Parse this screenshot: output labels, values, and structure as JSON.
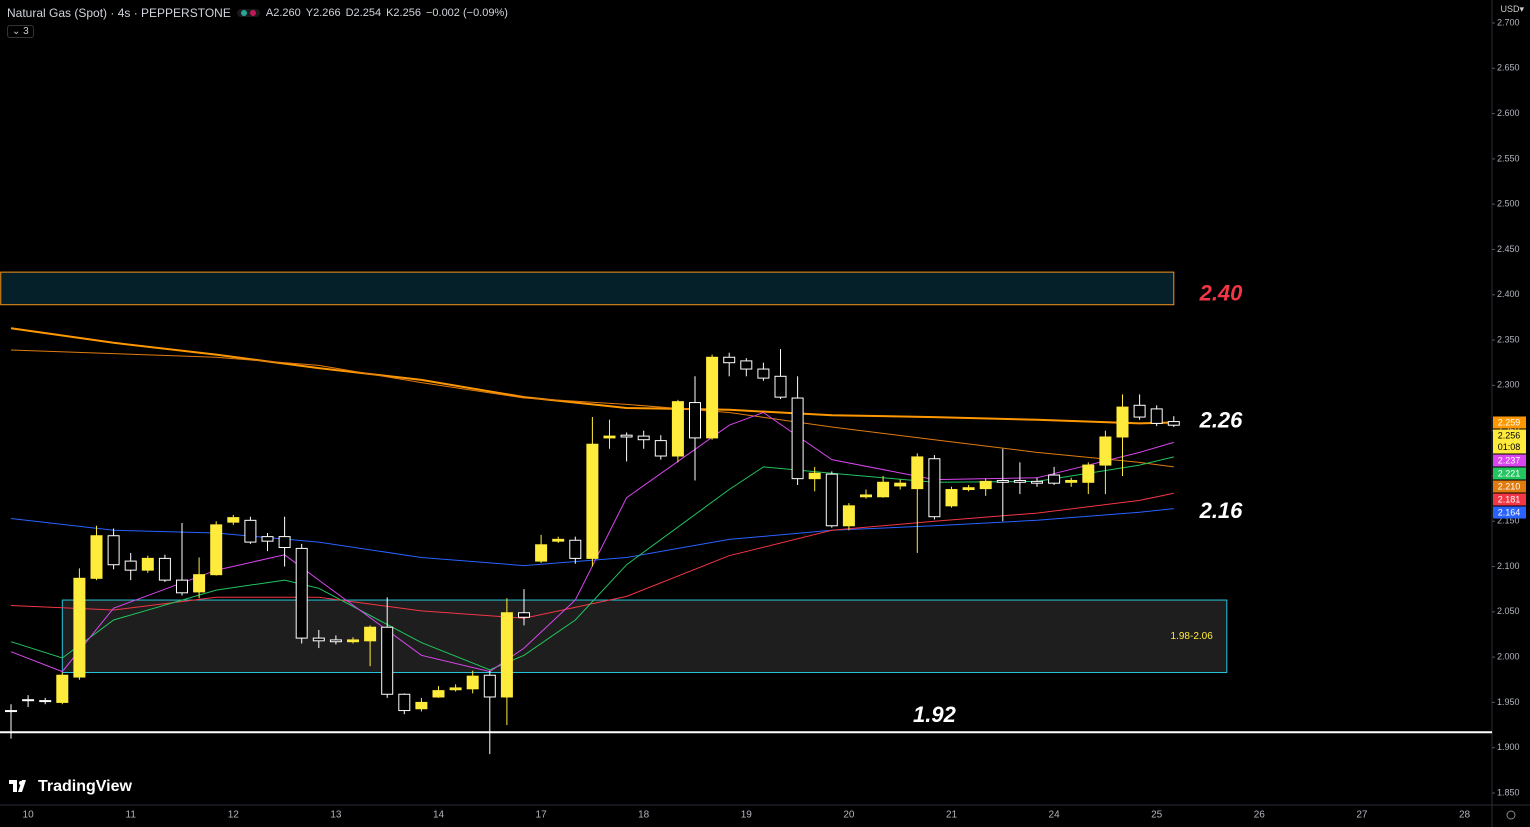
{
  "header": {
    "symbol": "Natural Gas (Spot) · 4s · PEPPERSTONE",
    "ohlc": [
      "A2.260",
      "Y2.266",
      "D2.254",
      "K2.256"
    ],
    "change": "−0.002 (−0.09%)",
    "indicators_count": "3",
    "currency": "USD",
    "brand": "TradingView"
  },
  "chart_data": {
    "type": "candlestick",
    "categories": [
      null,
      "10",
      null,
      null,
      null,
      null,
      null,
      "11",
      null,
      null,
      null,
      null,
      null,
      "12",
      null,
      null,
      null,
      null,
      null,
      "13",
      null,
      null,
      null,
      null,
      null,
      "14",
      null,
      null,
      null,
      null,
      null,
      "17",
      null,
      null,
      null,
      null,
      null,
      "18",
      null,
      null,
      null,
      null,
      null,
      "19",
      null,
      null,
      null,
      null,
      null,
      "20",
      null,
      null,
      null,
      null,
      null,
      "21",
      null,
      null,
      null,
      null,
      null,
      "24",
      null,
      null,
      null,
      null,
      null,
      "25",
      null,
      null,
      null,
      null,
      null,
      "26",
      null,
      null,
      null,
      null,
      null,
      "27",
      null,
      null,
      null,
      null,
      null,
      "28"
    ],
    "open": [
      1.941,
      1.953,
      1.952,
      1.95,
      1.978,
      2.087,
      2.134,
      2.106,
      2.096,
      2.109,
      2.085,
      2.072,
      2.091,
      2.149,
      2.151,
      2.133,
      2.133,
      2.12,
      2.021,
      2.019,
      2.017,
      2.018,
      2.033,
      1.959,
      1.943,
      1.956,
      1.964,
      1.965,
      1.98,
      1.956,
      2.049,
      2.106,
      2.128,
      2.129,
      2.109,
      2.242,
      2.245,
      2.244,
      2.239,
      2.222,
      2.281,
      2.242,
      2.331,
      2.327,
      2.318,
      2.31,
      2.286,
      2.197,
      2.202,
      2.145,
      2.177,
      2.177,
      2.189,
      2.186,
      2.219,
      2.167,
      2.185,
      2.186,
      2.195,
      2.195,
      2.194,
      2.201,
      2.193,
      2.193,
      2.212,
      2.243,
      2.278,
      2.274,
      2.26,
      null,
      null,
      null,
      null,
      null,
      null,
      null,
      null,
      null,
      null,
      null,
      null,
      null,
      null,
      null,
      null,
      null
    ],
    "high": [
      1.948,
      1.958,
      1.955,
      1.983,
      2.098,
      2.145,
      2.142,
      2.115,
      2.112,
      2.113,
      2.148,
      2.11,
      2.15,
      2.157,
      2.155,
      2.137,
      2.155,
      2.125,
      2.03,
      2.024,
      2.022,
      2.035,
      2.066,
      1.96,
      1.955,
      1.968,
      1.97,
      1.985,
      1.985,
      2.065,
      2.075,
      2.135,
      2.133,
      2.133,
      2.265,
      2.262,
      2.248,
      2.25,
      2.245,
      2.284,
      2.31,
      2.334,
      2.336,
      2.33,
      2.325,
      2.34,
      2.31,
      2.21,
      2.205,
      2.17,
      2.185,
      2.2,
      2.196,
      2.225,
      2.223,
      2.188,
      2.19,
      2.197,
      2.23,
      2.215,
      2.198,
      2.21,
      2.198,
      2.215,
      2.25,
      2.29,
      2.29,
      2.278,
      2.266,
      null,
      null,
      null,
      null,
      null,
      null,
      null,
      null,
      null,
      null,
      null,
      null,
      null,
      null,
      null,
      null,
      null
    ],
    "low": [
      1.91,
      1.945,
      1.948,
      1.948,
      1.975,
      2.085,
      2.097,
      2.085,
      2.093,
      2.083,
      2.068,
      2.065,
      2.09,
      2.146,
      2.125,
      2.117,
      2.1,
      2.015,
      2.01,
      2.014,
      2.015,
      1.99,
      1.955,
      1.937,
      1.94,
      1.955,
      1.962,
      1.96,
      1.893,
      1.925,
      2.035,
      2.104,
      2.126,
      2.103,
      2.1,
      2.23,
      2.216,
      2.23,
      2.218,
      2.215,
      2.195,
      2.24,
      2.31,
      2.31,
      2.305,
      2.285,
      2.19,
      2.183,
      2.143,
      2.14,
      2.175,
      2.176,
      2.185,
      2.115,
      2.152,
      2.165,
      2.183,
      2.178,
      2.15,
      2.18,
      2.188,
      2.19,
      2.188,
      2.18,
      2.18,
      2.2,
      2.262,
      2.255,
      2.254,
      null,
      null,
      null,
      null,
      null,
      null,
      null,
      null,
      null,
      null,
      null,
      null,
      null,
      null,
      null,
      null,
      null
    ],
    "close": [
      1.94,
      1.952,
      1.951,
      1.98,
      2.087,
      2.134,
      2.102,
      2.096,
      2.109,
      2.085,
      2.071,
      2.091,
      2.146,
      2.154,
      2.127,
      2.128,
      2.121,
      2.021,
      2.018,
      2.017,
      2.019,
      2.033,
      1.959,
      1.941,
      1.95,
      1.963,
      1.966,
      1.979,
      1.956,
      2.049,
      2.044,
      2.124,
      2.13,
      2.109,
      2.235,
      2.244,
      2.243,
      2.24,
      2.222,
      2.282,
      2.242,
      2.331,
      2.325,
      2.318,
      2.308,
      2.287,
      2.197,
      2.203,
      2.145,
      2.167,
      2.179,
      2.193,
      2.192,
      2.221,
      2.155,
      2.185,
      2.187,
      2.194,
      2.193,
      2.193,
      2.192,
      2.192,
      2.195,
      2.212,
      2.243,
      2.276,
      2.265,
      2.258,
      2.256,
      null,
      null,
      null,
      null,
      null,
      null,
      null,
      null,
      null,
      null,
      null,
      null,
      null,
      null,
      null,
      null,
      null
    ],
    "up_color": "#ffeb3b",
    "down_color": "#ffffff",
    "price_tag": "2.256",
    "countdown": "01:08",
    "series": [
      {
        "color": "#ff9800",
        "width": 2,
        "x": [
          0,
          6,
          12,
          18,
          24,
          30,
          36,
          42,
          48,
          54,
          60,
          66,
          68
        ],
        "values": [
          2.363,
          2.347,
          2.334,
          2.319,
          2.306,
          2.287,
          2.275,
          2.273,
          2.267,
          2.265,
          2.262,
          2.258,
          2.259
        ],
        "tag_label": "2.259"
      },
      {
        "color": "#e07b10",
        "width": 1,
        "x": [
          0,
          6,
          12,
          18,
          24,
          30,
          36,
          42,
          48,
          54,
          60,
          66,
          68
        ],
        "values": [
          2.339,
          2.335,
          2.331,
          2.322,
          2.303,
          2.286,
          2.279,
          2.27,
          2.254,
          2.24,
          2.226,
          2.215,
          2.21
        ],
        "tag_label": "2.210"
      },
      {
        "color": "#2962ff",
        "width": 1,
        "x": [
          0,
          6,
          12,
          18,
          24,
          30,
          36,
          42,
          48,
          54,
          60,
          66,
          68
        ],
        "values": [
          2.153,
          2.14,
          2.137,
          2.127,
          2.11,
          2.101,
          2.11,
          2.13,
          2.14,
          2.145,
          2.151,
          2.16,
          2.164
        ],
        "tag_label": "2.164"
      },
      {
        "color": "#f23645",
        "width": 1,
        "x": [
          0,
          6,
          12,
          18,
          24,
          30,
          36,
          42,
          48,
          54,
          60,
          66,
          68
        ],
        "values": [
          2.057,
          2.052,
          2.066,
          2.066,
          2.051,
          2.043,
          2.067,
          2.112,
          2.14,
          2.15,
          2.159,
          2.173,
          2.181
        ],
        "tag_label": "2.181"
      },
      {
        "color": "#22c55e",
        "width": 1,
        "x": [
          0,
          3,
          6,
          12,
          16,
          18,
          24,
          28,
          30,
          33,
          36,
          42,
          44,
          48,
          54,
          60,
          66,
          68
        ],
        "values": [
          2.017,
          1.999,
          2.041,
          2.074,
          2.085,
          2.076,
          2.016,
          1.986,
          2.002,
          2.041,
          2.102,
          2.185,
          2.21,
          2.203,
          2.193,
          2.194,
          2.212,
          2.221
        ],
        "tag_label": "2.221"
      },
      {
        "color": "#d946ef",
        "width": 1,
        "x": [
          0,
          3,
          6,
          12,
          16,
          18,
          24,
          28,
          30,
          33,
          36,
          42,
          44,
          48,
          54,
          60,
          66,
          68
        ],
        "values": [
          2.006,
          1.984,
          2.054,
          2.096,
          2.113,
          2.085,
          2.002,
          1.984,
          2.01,
          2.063,
          2.176,
          2.256,
          2.27,
          2.218,
          2.196,
          2.198,
          2.226,
          2.237
        ],
        "tag_label": "2.237"
      }
    ],
    "zones": [
      {
        "low": 2.389,
        "high": 2.425,
        "from": -0.6,
        "to": 68,
        "stroke": "#f7931a",
        "fill": "#06202a"
      },
      {
        "low": 1.983,
        "high": 2.063,
        "from": 3,
        "to": 71.1,
        "stroke": "#26c6da",
        "fill": "#1e1e1e",
        "label": "1.98-2.06"
      }
    ],
    "level": {
      "value": 1.917,
      "color": "#ffffff"
    },
    "annotations": [
      {
        "text": "2.40",
        "y": 2.4,
        "color": "#f23645"
      },
      {
        "text": "2.26",
        "y": 2.26,
        "color": "#ffffff"
      },
      {
        "text": "2.16",
        "y": 2.16,
        "color": "#ffffff"
      },
      {
        "text": "1.92",
        "y": 1.935,
        "color": "#ffffff",
        "at": 54
      }
    ],
    "ylim": [
      1.85,
      2.7
    ],
    "yticks": [
      {
        "value": 2.7,
        "label": "2.700"
      },
      {
        "value": 2.65,
        "label": "2.650"
      },
      {
        "value": 2.6,
        "label": "2.600"
      },
      {
        "value": 2.55,
        "label": "2.550"
      },
      {
        "value": 2.5,
        "label": "2.500"
      },
      {
        "value": 2.45,
        "label": "2.450"
      },
      {
        "value": 2.4,
        "label": "2.400"
      },
      {
        "value": 2.35,
        "label": "2.350"
      },
      {
        "value": 2.3,
        "label": "2.300"
      },
      {
        "value": 2.25,
        "label": "2.250"
      },
      {
        "value": 2.2,
        "label": "2.200"
      },
      {
        "value": 2.15,
        "label": "2.150"
      },
      {
        "value": 2.1,
        "label": "2.100"
      },
      {
        "value": 2.05,
        "label": "2.050"
      },
      {
        "value": 2.0,
        "label": "2.000"
      },
      {
        "value": 1.95,
        "label": "1.950"
      },
      {
        "value": 1.9,
        "label": "1.900"
      },
      {
        "value": 1.85,
        "label": "1.850"
      }
    ],
    "grid": false
  }
}
